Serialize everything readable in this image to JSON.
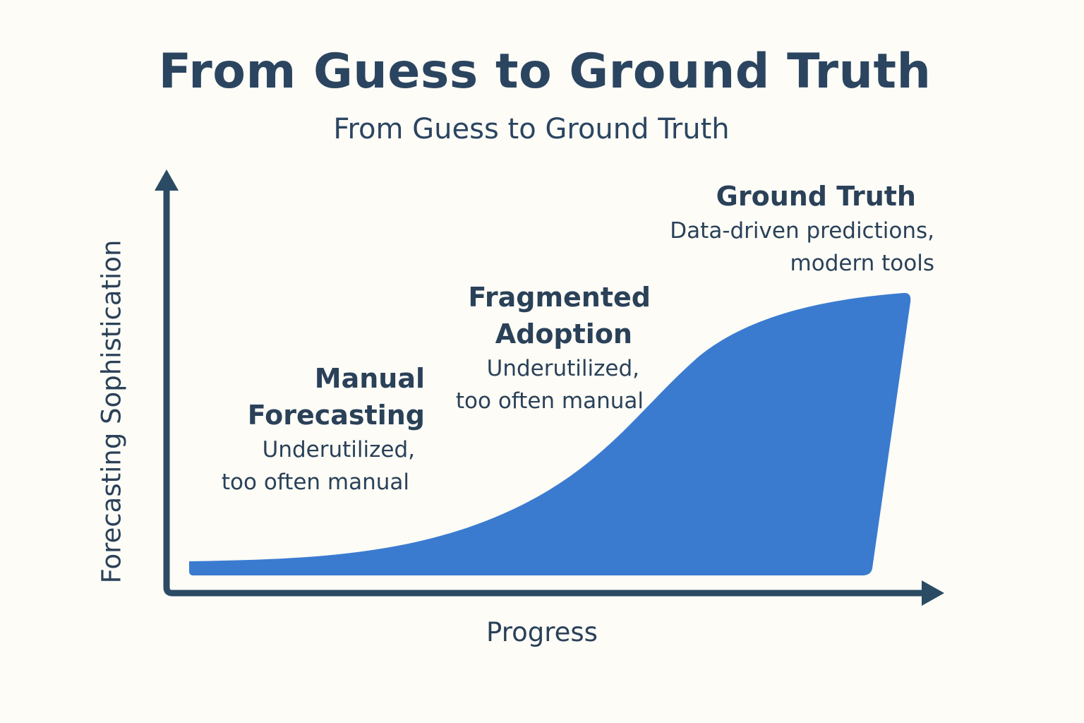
{
  "title": "From Guess to Ground Truth",
  "subtitle": "From Guess to Ground Truth",
  "axes": {
    "y_label": "Forecasting Sophistication",
    "x_label": "Progress"
  },
  "colors": {
    "curve_fill": "#3a7bd0",
    "axis": "#2b4a63",
    "text": "#2a4158",
    "background": "#fdfcf7"
  },
  "stages": [
    {
      "title_lines": [
        "Manual",
        "Forecasting"
      ],
      "desc_lines": [
        "Underutilized,",
        "too often manual"
      ]
    },
    {
      "title_lines": [
        "Fragmented",
        "Adoption"
      ],
      "desc_lines": [
        "Underutilized,",
        "too often manual"
      ]
    },
    {
      "title_lines": [
        "Ground Truth"
      ],
      "desc_lines": [
        "Data-driven predictions,",
        "modern tools"
      ]
    }
  ]
}
